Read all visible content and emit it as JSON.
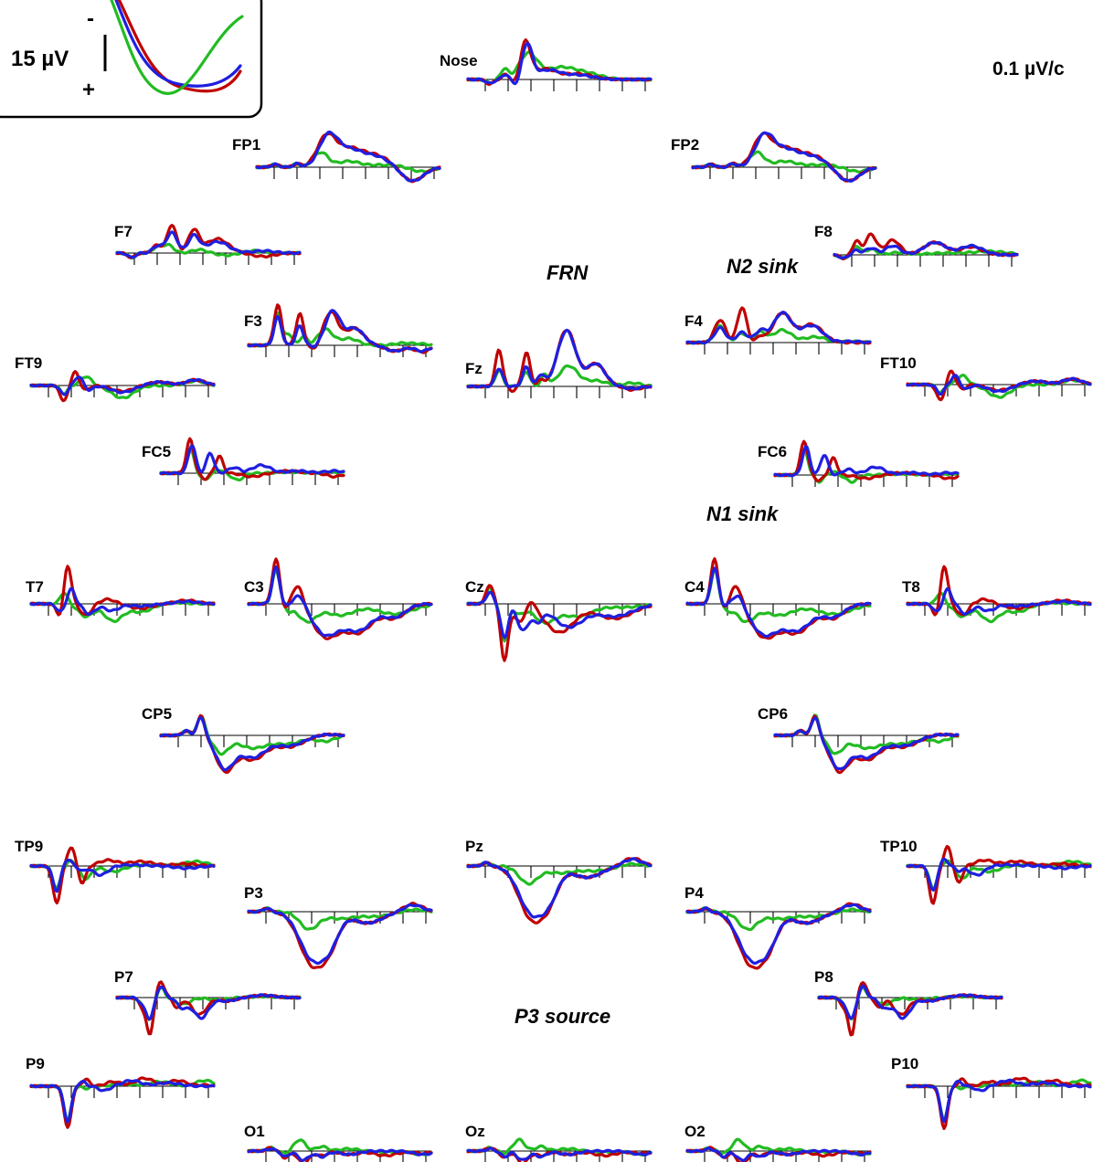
{
  "chart_data": {
    "type": "line",
    "colors": {
      "red": "#c00000",
      "green": "#22bb22",
      "blue": "#1f1fe0"
    },
    "scale_label": "0.1 µV/c",
    "legend": {
      "amplitude_label": "15 µV",
      "negative_sign": "-",
      "positive_sign": "+"
    },
    "components": [
      {
        "label": "FRN"
      },
      {
        "label": "N2 sink"
      },
      {
        "label": "N1 sink"
      },
      {
        "label": "P3 source"
      }
    ],
    "electrodes": [
      {
        "name": "Nose",
        "shape": "nose"
      },
      {
        "name": "FP1",
        "shape": "fp"
      },
      {
        "name": "FP2",
        "shape": "fp"
      },
      {
        "name": "F7",
        "shape": "f7"
      },
      {
        "name": "F8",
        "shape": "f8"
      },
      {
        "name": "F3",
        "shape": "f3"
      },
      {
        "name": "Fz",
        "shape": "fz"
      },
      {
        "name": "F4",
        "shape": "f4"
      },
      {
        "name": "FT9",
        "shape": "ft9"
      },
      {
        "name": "FT10",
        "shape": "ft9"
      },
      {
        "name": "FC5",
        "shape": "fc"
      },
      {
        "name": "FC6",
        "shape": "fc"
      },
      {
        "name": "T7",
        "shape": "t"
      },
      {
        "name": "C3",
        "shape": "c"
      },
      {
        "name": "Cz",
        "shape": "cz"
      },
      {
        "name": "C4",
        "shape": "c"
      },
      {
        "name": "T8",
        "shape": "t"
      },
      {
        "name": "CP5",
        "shape": "cp"
      },
      {
        "name": "CP6",
        "shape": "cp"
      },
      {
        "name": "TP9",
        "shape": "tp"
      },
      {
        "name": "Pz",
        "shape": "p"
      },
      {
        "name": "TP10",
        "shape": "tp"
      },
      {
        "name": "P3",
        "shape": "p"
      },
      {
        "name": "P4",
        "shape": "p"
      },
      {
        "name": "P7",
        "shape": "p7"
      },
      {
        "name": "P8",
        "shape": "p7"
      },
      {
        "name": "P9",
        "shape": "p9"
      },
      {
        "name": "P10",
        "shape": "p9"
      },
      {
        "name": "O1",
        "shape": "o"
      },
      {
        "name": "Oz",
        "shape": "o"
      },
      {
        "name": "O2",
        "shape": "o"
      }
    ]
  }
}
